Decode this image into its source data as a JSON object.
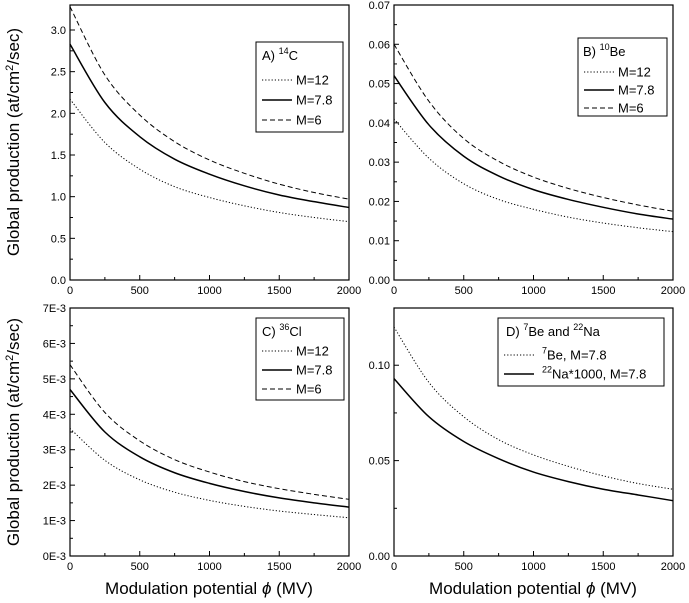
{
  "figure": {
    "ylabel_main": "Global production (at/cm",
    "ylabel_sup": "2",
    "ylabel_end": "/sec)",
    "xlabel_main": "Modulation potential ",
    "xlabel_phi": "ϕ",
    "xlabel_unit": " (MV)"
  },
  "chart_data": [
    {
      "type": "line",
      "panel": "A",
      "label_prefix": "A) ",
      "label_sup": "14",
      "label_suffix": "C",
      "x_ticks": [
        "0",
        "500",
        "1000",
        "1500",
        "2000"
      ],
      "y_ticks": [
        "0.0",
        "0.5",
        "1.0",
        "1.5",
        "2.0",
        "2.5",
        "3.0"
      ],
      "y_tick_values": [
        0,
        0.5,
        1.0,
        1.5,
        2.0,
        2.5,
        3.0
      ],
      "xlim": [
        0,
        2000
      ],
      "ylim": [
        0,
        3.3
      ],
      "legend_position": "top-right",
      "series": [
        {
          "name": "M=12",
          "style": "dotted",
          "x": [
            0,
            250,
            500,
            750,
            1000,
            1250,
            1500,
            1750,
            2000
          ],
          "values": [
            2.17,
            1.65,
            1.33,
            1.12,
            0.99,
            0.89,
            0.81,
            0.75,
            0.7
          ]
        },
        {
          "name": "M=7.8",
          "style": "solid",
          "x": [
            0,
            250,
            500,
            750,
            1000,
            1250,
            1500,
            1750,
            2000
          ],
          "values": [
            2.83,
            2.13,
            1.72,
            1.45,
            1.27,
            1.13,
            1.02,
            0.94,
            0.87
          ]
        },
        {
          "name": "M=6",
          "style": "dashed",
          "x": [
            0,
            250,
            500,
            750,
            1000,
            1250,
            1500,
            1750,
            2000
          ],
          "values": [
            3.28,
            2.46,
            1.98,
            1.66,
            1.44,
            1.28,
            1.15,
            1.05,
            0.97
          ]
        }
      ]
    },
    {
      "type": "line",
      "panel": "B",
      "label_prefix": "B) ",
      "label_sup": "10",
      "label_suffix": "Be",
      "x_ticks": [
        "0",
        "500",
        "1000",
        "1500",
        "2000"
      ],
      "y_ticks": [
        "0.00",
        "0.01",
        "0.02",
        "0.03",
        "0.04",
        "0.05",
        "0.06",
        "0.07"
      ],
      "y_tick_values": [
        0,
        0.01,
        0.02,
        0.03,
        0.04,
        0.05,
        0.06,
        0.07
      ],
      "xlim": [
        0,
        2000
      ],
      "ylim": [
        0,
        0.07
      ],
      "legend_position": "top-right",
      "series": [
        {
          "name": "M=12",
          "style": "dotted",
          "x": [
            0,
            250,
            500,
            750,
            1000,
            1250,
            1500,
            1750,
            2000
          ],
          "values": [
            0.041,
            0.031,
            0.0245,
            0.0205,
            0.018,
            0.016,
            0.0145,
            0.0133,
            0.0123
          ]
        },
        {
          "name": "M=7.8",
          "style": "solid",
          "x": [
            0,
            250,
            500,
            750,
            1000,
            1250,
            1500,
            1750,
            2000
          ],
          "values": [
            0.052,
            0.0395,
            0.0315,
            0.0265,
            0.023,
            0.0205,
            0.0185,
            0.0168,
            0.0155
          ]
        },
        {
          "name": "M=6",
          "style": "dashed",
          "x": [
            0,
            250,
            500,
            750,
            1000,
            1250,
            1500,
            1750,
            2000
          ],
          "values": [
            0.06,
            0.0455,
            0.036,
            0.0302,
            0.0262,
            0.0233,
            0.021,
            0.0191,
            0.0175
          ]
        }
      ]
    },
    {
      "type": "line",
      "panel": "C",
      "label_prefix": "C) ",
      "label_sup": "36",
      "label_suffix": "Cl",
      "x_ticks": [
        "0",
        "500",
        "1000",
        "1500",
        "2000"
      ],
      "y_ticks": [
        "0E-3",
        "1E-3",
        "2E-3",
        "3E-3",
        "4E-3",
        "5E-3",
        "6E-3",
        "7E-3"
      ],
      "y_tick_values": [
        0,
        0.001,
        0.002,
        0.003,
        0.004,
        0.005,
        0.006,
        0.007
      ],
      "xlim": [
        0,
        2000
      ],
      "ylim": [
        0,
        0.007
      ],
      "legend_position": "top-right",
      "series": [
        {
          "name": "M=12",
          "style": "dotted",
          "x": [
            0,
            250,
            500,
            750,
            1000,
            1250,
            1500,
            1750,
            2000
          ],
          "values": [
            0.0036,
            0.0027,
            0.00215,
            0.0018,
            0.00157,
            0.0014,
            0.00127,
            0.00117,
            0.00108
          ]
        },
        {
          "name": "M=7.8",
          "style": "solid",
          "x": [
            0,
            250,
            500,
            750,
            1000,
            1250,
            1500,
            1750,
            2000
          ],
          "values": [
            0.0047,
            0.0035,
            0.0028,
            0.00235,
            0.00205,
            0.00182,
            0.00164,
            0.0015,
            0.00138
          ]
        },
        {
          "name": "M=6",
          "style": "dashed",
          "x": [
            0,
            250,
            500,
            750,
            1000,
            1250,
            1500,
            1750,
            2000
          ],
          "values": [
            0.0054,
            0.00405,
            0.00325,
            0.00272,
            0.00237,
            0.0021,
            0.0019,
            0.00174,
            0.0016
          ]
        }
      ]
    },
    {
      "type": "line",
      "panel": "D",
      "label_prefix": "D) ",
      "label_sup": "7",
      "label_mid": "Be and ",
      "label_sup2": "22",
      "label_suffix": "Na",
      "x_ticks": [
        "0",
        "500",
        "1000",
        "1500",
        "2000"
      ],
      "y_ticks": [
        "0.00",
        "0.05",
        "0.10"
      ],
      "y_tick_values": [
        0,
        0.05,
        0.1
      ],
      "xlim": [
        0,
        2000
      ],
      "ylim": [
        0,
        0.13
      ],
      "legend_position": "top-right",
      "series": [
        {
          "name_sup": "7",
          "name": "Be, M=7.8",
          "style": "dotted",
          "x": [
            0,
            250,
            500,
            750,
            1000,
            1250,
            1500,
            1750,
            2000
          ],
          "values": [
            0.12,
            0.091,
            0.073,
            0.061,
            0.053,
            0.047,
            0.042,
            0.038,
            0.035
          ]
        },
        {
          "name_sup": "22",
          "name": "Na*1000, M=7.8",
          "style": "solid",
          "x": [
            0,
            250,
            500,
            750,
            1000,
            1250,
            1500,
            1750,
            2000
          ],
          "values": [
            0.093,
            0.073,
            0.06,
            0.051,
            0.044,
            0.039,
            0.035,
            0.032,
            0.029
          ]
        }
      ]
    }
  ]
}
